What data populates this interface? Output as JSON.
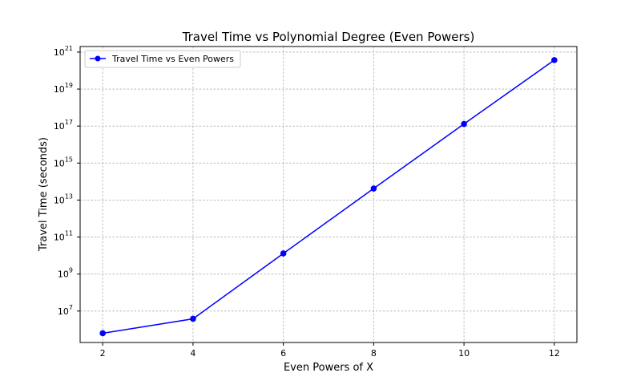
{
  "chart_data": {
    "type": "line",
    "title": "Travel Time vs Polynomial Degree (Even Powers)",
    "xlabel": "Even Powers of X",
    "ylabel": "Travel Time (seconds)",
    "x": [
      2,
      4,
      6,
      8,
      10,
      12
    ],
    "x_ticks": [
      "2",
      "4",
      "6",
      "8",
      "10",
      "12"
    ],
    "xlim": [
      1.5,
      12.5
    ],
    "y_scale": "log",
    "ylim_exponents": [
      5.3,
      21.3
    ],
    "y_tick_exponents": [
      "7",
      "9",
      "11",
      "13",
      "15",
      "17",
      "19",
      "21"
    ],
    "y_tick_base": "10",
    "series": [
      {
        "name": "Travel Time vs Even Powers",
        "color": "#0000ff",
        "values": [
          630000.0,
          3800000.0,
          13000000000.0,
          42000000000000.0,
          1.3e+17,
          3.7e+20
        ]
      }
    ],
    "grid": true,
    "legend_position": "top-left"
  }
}
